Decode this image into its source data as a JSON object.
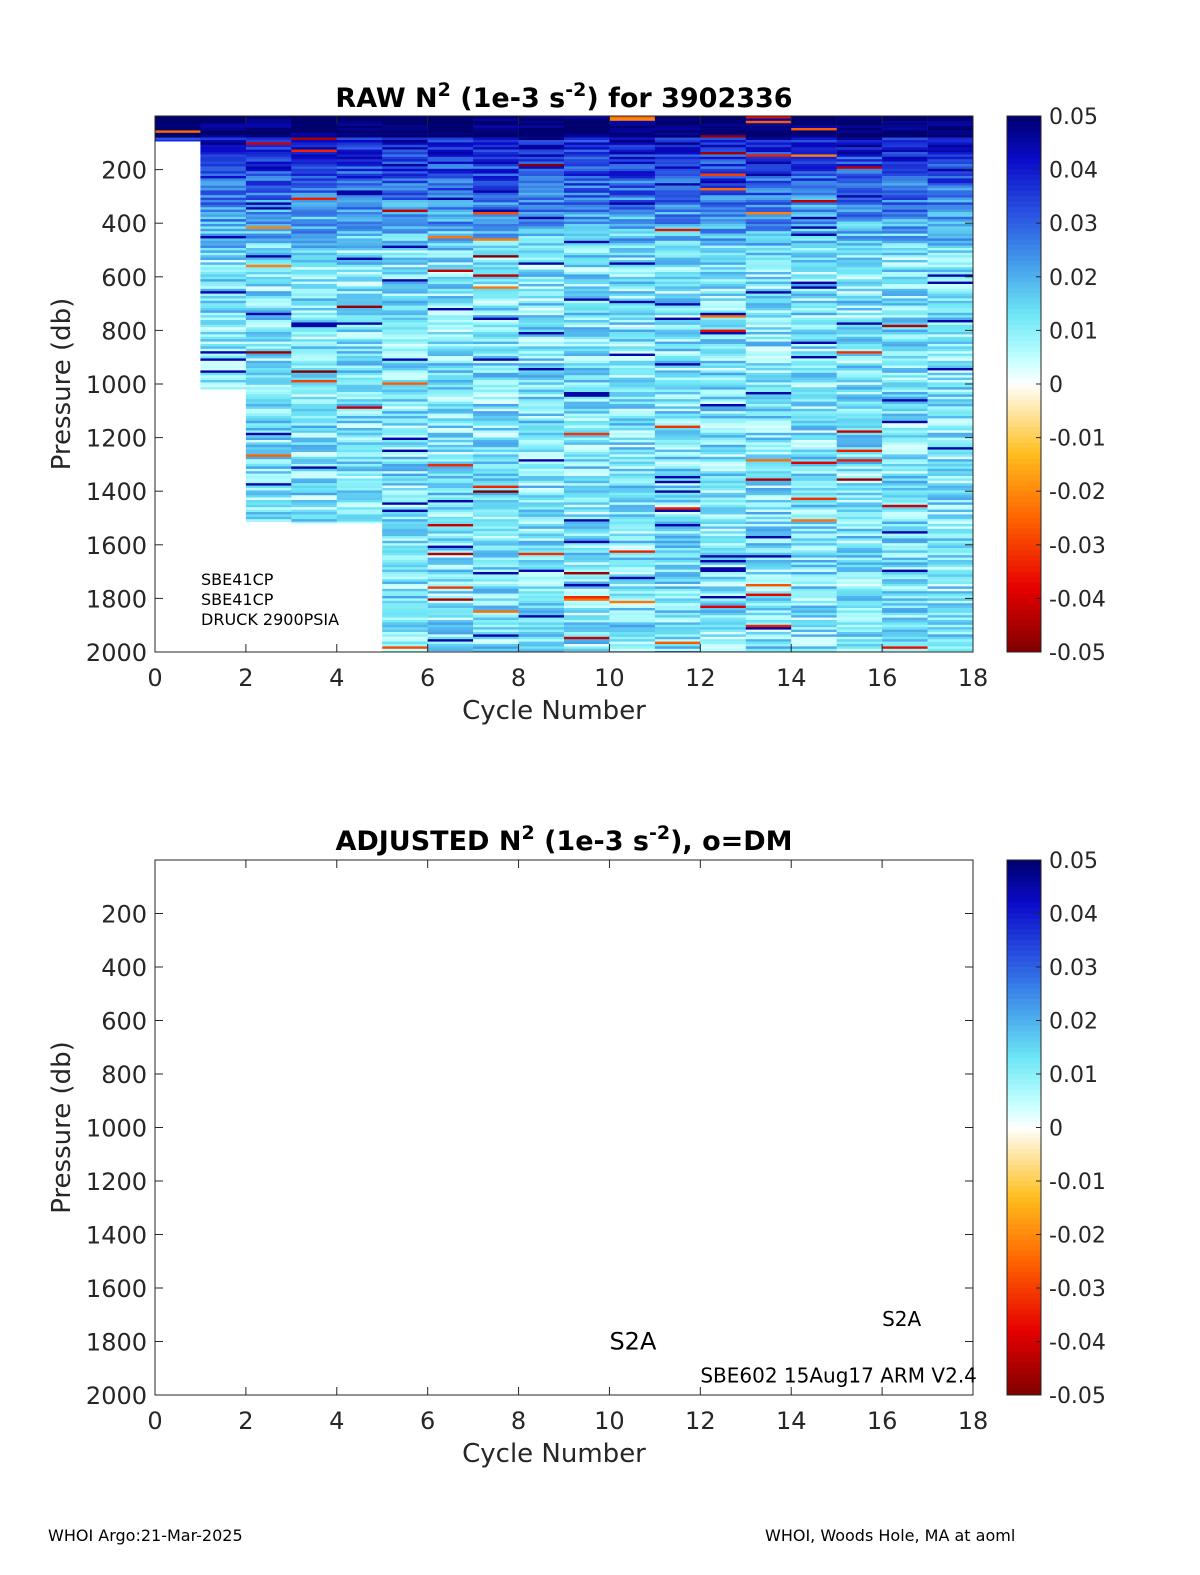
{
  "footer": {
    "left": "WHOI Argo:21-Mar-2025",
    "right": "WHOI, Woods Hole, MA at aoml"
  },
  "chart_data": [
    {
      "type": "heatmap",
      "title": "RAW N² (1e-3 s⁻²) for 3902336",
      "title_parts": {
        "pre": "RAW N",
        "sup1": "2",
        "mid": " (1e-3 s",
        "sup2": "-2",
        "post": ") for 3902336"
      },
      "xlabel": "Cycle Number",
      "ylabel": "Pressure (db)",
      "xlim": [
        0,
        18
      ],
      "ylim": [
        0,
        2000
      ],
      "y_reversed": true,
      "xticks": [
        0,
        2,
        4,
        6,
        8,
        10,
        12,
        14,
        16,
        18
      ],
      "yticks": [
        200,
        400,
        600,
        800,
        1000,
        1200,
        1400,
        1600,
        1800,
        2000
      ],
      "colorbar": {
        "min": -0.05,
        "max": 0.05,
        "ticks": [
          "0.05",
          "0.04",
          "0.03",
          "0.02",
          "0.01",
          "0",
          "-0.01",
          "-0.02",
          "-0.03",
          "-0.04",
          "-0.05"
        ],
        "colormap": "jet-like"
      },
      "profiles": [
        {
          "cycle_start": 0,
          "cycle_end": 1,
          "p_top": 0,
          "p_bottom": 95
        },
        {
          "cycle_start": 1,
          "cycle_end": 2,
          "p_top": 0,
          "p_bottom": 1020
        },
        {
          "cycle_start": 2,
          "cycle_end": 3,
          "p_top": 0,
          "p_bottom": 1515
        },
        {
          "cycle_start": 3,
          "cycle_end": 4,
          "p_top": 0,
          "p_bottom": 1520
        },
        {
          "cycle_start": 4,
          "cycle_end": 5,
          "p_top": 0,
          "p_bottom": 1520
        },
        {
          "cycle_start": 5,
          "cycle_end": 6,
          "p_top": 0,
          "p_bottom": 2000
        },
        {
          "cycle_start": 6,
          "cycle_end": 7,
          "p_top": 0,
          "p_bottom": 2000
        },
        {
          "cycle_start": 7,
          "cycle_end": 8,
          "p_top": 0,
          "p_bottom": 2000
        },
        {
          "cycle_start": 8,
          "cycle_end": 9,
          "p_top": 0,
          "p_bottom": 2000
        },
        {
          "cycle_start": 9,
          "cycle_end": 10,
          "p_top": 0,
          "p_bottom": 2000
        },
        {
          "cycle_start": 10,
          "cycle_end": 11,
          "p_top": 0,
          "p_bottom": 2000
        },
        {
          "cycle_start": 11,
          "cycle_end": 12,
          "p_top": 0,
          "p_bottom": 2000
        },
        {
          "cycle_start": 12,
          "cycle_end": 13,
          "p_top": 0,
          "p_bottom": 2000
        },
        {
          "cycle_start": 13,
          "cycle_end": 14,
          "p_top": 0,
          "p_bottom": 2000
        },
        {
          "cycle_start": 14,
          "cycle_end": 15,
          "p_top": 0,
          "p_bottom": 2000
        },
        {
          "cycle_start": 15,
          "cycle_end": 16,
          "p_top": 0,
          "p_bottom": 2000
        },
        {
          "cycle_start": 16,
          "cycle_end": 17,
          "p_top": 0,
          "p_bottom": 2000
        },
        {
          "cycle_start": 17,
          "cycle_end": 18,
          "p_top": 0,
          "p_bottom": 2000
        }
      ],
      "annotations": [
        "SBE41CP",
        "SBE41CP",
        "DRUCK 2900PSIA"
      ]
    },
    {
      "type": "heatmap",
      "title": "ADJUSTED N² (1e-3 s⁻²), o=DM",
      "title_parts": {
        "pre": "ADJUSTED N",
        "sup1": "2",
        "mid": " (1e-3 s",
        "sup2": "-2",
        "post": "), o=DM"
      },
      "xlabel": "Cycle Number",
      "ylabel": "Pressure (db)",
      "xlim": [
        0,
        18
      ],
      "ylim": [
        0,
        2000
      ],
      "y_reversed": true,
      "xticks": [
        0,
        2,
        4,
        6,
        8,
        10,
        12,
        14,
        16,
        18
      ],
      "yticks": [
        200,
        400,
        600,
        800,
        1000,
        1200,
        1400,
        1600,
        1800,
        2000
      ],
      "colorbar": {
        "min": -0.05,
        "max": 0.05,
        "ticks": [
          "0.05",
          "0.04",
          "0.03",
          "0.02",
          "0.01",
          "0",
          "-0.01",
          "-0.02",
          "-0.03",
          "-0.04",
          "-0.05"
        ],
        "colormap": "jet-like"
      },
      "profiles": [],
      "annotations": [
        {
          "text": "S2A",
          "x": 10,
          "y": 1800,
          "size": "large"
        },
        {
          "text": "S2A",
          "x": 16,
          "y": 1720,
          "size": "small"
        },
        {
          "text": "SBE602 15Aug17 ARM V2.4",
          "x": 12,
          "y": 1930,
          "size": "small"
        }
      ]
    }
  ]
}
